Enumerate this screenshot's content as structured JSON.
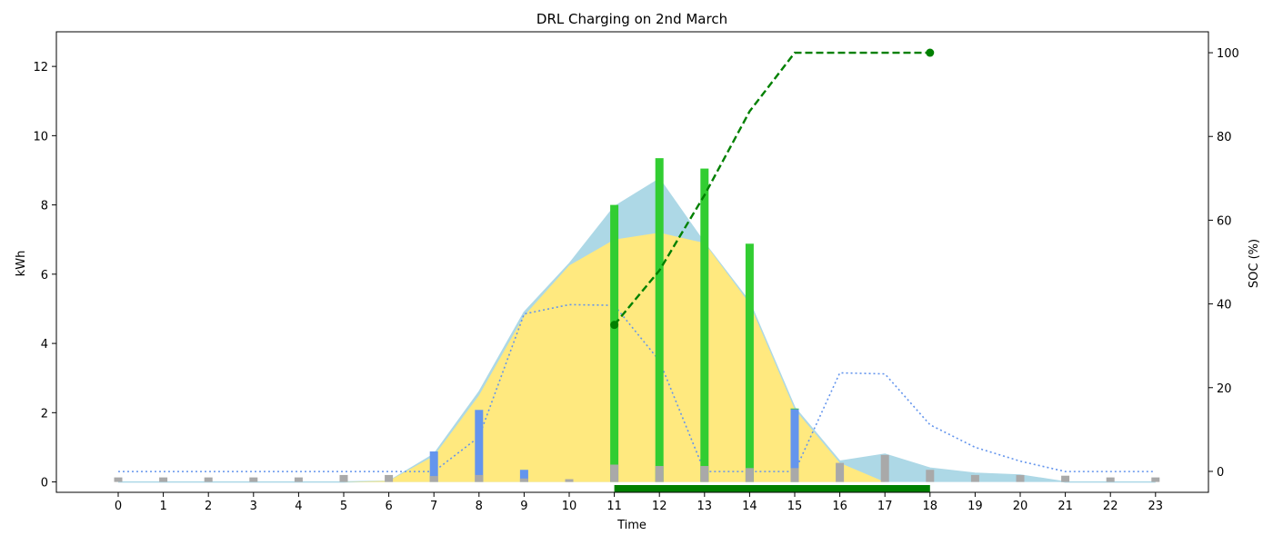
{
  "chart_data": {
    "type": "bar",
    "title": "DRL Charging on 2nd March",
    "xlabel": "Time",
    "ylabel": "kWh",
    "y2label": "SOC (%)",
    "categories": [
      "0",
      "1",
      "2",
      "3",
      "4",
      "5",
      "6",
      "7",
      "8",
      "9",
      "10",
      "11",
      "12",
      "13",
      "14",
      "15",
      "16",
      "17",
      "18",
      "19",
      "20",
      "21",
      "22",
      "23"
    ],
    "ylim": [
      -0.3,
      13.0
    ],
    "y2lim": [
      -5,
      105
    ],
    "yticks": [
      0,
      2,
      4,
      6,
      8,
      10,
      12
    ],
    "y2ticks": [
      0,
      20,
      40,
      60,
      80,
      100
    ],
    "grid": false,
    "series": [
      {
        "kind": "area",
        "color": "#add8e6",
        "values": [
          0,
          0,
          0,
          0,
          0,
          0,
          0.02,
          0.8,
          2.6,
          4.9,
          6.3,
          7.95,
          8.75,
          6.9,
          5.2,
          2.15,
          0.6,
          0.8,
          0.4,
          0.25,
          0.2,
          0,
          0,
          0
        ]
      },
      {
        "kind": "area",
        "color": "#ffe97f",
        "values": [
          0,
          0,
          0,
          0,
          0,
          0,
          0.03,
          0.75,
          2.5,
          4.8,
          6.25,
          7.0,
          7.2,
          6.9,
          5.15,
          2.1,
          0.55,
          0,
          0,
          0,
          0,
          0,
          0,
          0
        ]
      },
      {
        "kind": "line",
        "color": "#6495ed",
        "style": "dotted",
        "values": [
          0.3,
          0.3,
          0.3,
          0.3,
          0.3,
          0.3,
          0.3,
          0.3,
          1.3,
          4.85,
          5.12,
          5.1,
          3.5,
          0.3,
          0.3,
          0.3,
          3.15,
          3.12,
          1.65,
          1.0,
          0.6,
          0.3,
          0.3,
          0.3
        ]
      },
      {
        "kind": "bar",
        "color": "#a9a9a9",
        "values": [
          0.13,
          0.13,
          0.13,
          0.13,
          0.13,
          0.2,
          0.2,
          0.17,
          0.2,
          0.1,
          0.08,
          0.5,
          0.46,
          0.46,
          0.4,
          0.4,
          0.55,
          0.78,
          0.35,
          0.2,
          0.2,
          0.18,
          0.13,
          0.13
        ]
      },
      {
        "kind": "bar",
        "color": "#6495ed",
        "values": [
          0,
          0,
          0,
          0,
          0,
          0,
          0,
          0.88,
          2.08,
          0.35,
          0,
          0,
          0,
          0,
          0,
          2.1,
          0,
          0,
          0,
          0,
          0,
          0,
          0,
          0
        ]
      },
      {
        "kind": "bar",
        "color": "#32cd32",
        "values": [
          0,
          0,
          0,
          0,
          0,
          0,
          0,
          0,
          0,
          0,
          0,
          8.0,
          9.35,
          9.05,
          6.88,
          2.12,
          0,
          0,
          0,
          0,
          0,
          0,
          0,
          0
        ]
      },
      {
        "kind": "line",
        "axis": "right",
        "color": "#008000",
        "style": "dashed",
        "markers": "ends",
        "x": [
          11,
          12,
          13,
          14,
          15,
          16,
          17,
          18
        ],
        "values": [
          35,
          48,
          66,
          86,
          100,
          100,
          100,
          100
        ]
      },
      {
        "kind": "span",
        "color": "#008000",
        "start": 11,
        "end": 18
      }
    ]
  }
}
